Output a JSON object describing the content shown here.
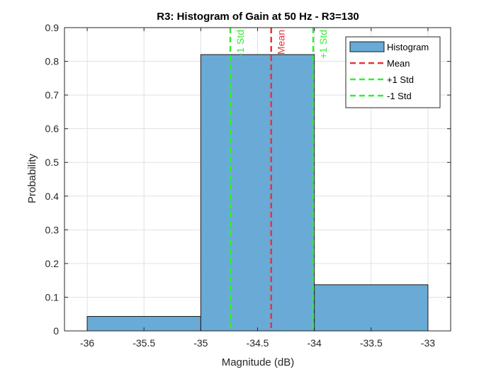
{
  "chart_data": {
    "type": "bar",
    "title": "R3: Histogram of Gain at 50 Hz  - R3=130",
    "xlabel": "Magnitude (dB)",
    "ylabel": "Probability",
    "xlim": [
      -36.2,
      -32.8
    ],
    "ylim": [
      0,
      0.9
    ],
    "xticks": [
      -36,
      -35.5,
      -35,
      -34.5,
      -34,
      -33.5,
      -33
    ],
    "xtick_labels": [
      "-36",
      "-35.5",
      "-35",
      "-34.5",
      "-34",
      "-33.5",
      "-33"
    ],
    "yticks": [
      0,
      0.1,
      0.2,
      0.3,
      0.4,
      0.5,
      0.6,
      0.7,
      0.8,
      0.9
    ],
    "ytick_labels": [
      "0",
      "0.1",
      "0.2",
      "0.3",
      "0.4",
      "0.5",
      "0.6",
      "0.7",
      "0.8",
      "0.9"
    ],
    "grid": true,
    "bins": [
      {
        "left": -36,
        "right": -35,
        "value": 0.043
      },
      {
        "left": -35,
        "right": -34,
        "value": 0.82
      },
      {
        "left": -34,
        "right": -33,
        "value": 0.137
      }
    ],
    "bar_color": "#6aaad6",
    "vlines": [
      {
        "name": "Mean",
        "x": -34.38,
        "color": "#e8343a",
        "label": "Mean"
      },
      {
        "name": "+1 Std",
        "x": -34.01,
        "color": "#33ee33",
        "label": "+1 Std"
      },
      {
        "name": "-1 Std",
        "x": -34.74,
        "color": "#33ee33",
        "label": "-1 Std"
      }
    ],
    "legend": {
      "position": "top-right",
      "entries": [
        {
          "label": "Histogram",
          "kind": "patch",
          "color": "#6aaad6"
        },
        {
          "label": "Mean",
          "kind": "dash",
          "color": "#e8343a"
        },
        {
          "label": "+1 Std",
          "kind": "dash",
          "color": "#33ee33"
        },
        {
          "label": "-1 Std",
          "kind": "dash",
          "color": "#33ee33"
        }
      ]
    }
  }
}
